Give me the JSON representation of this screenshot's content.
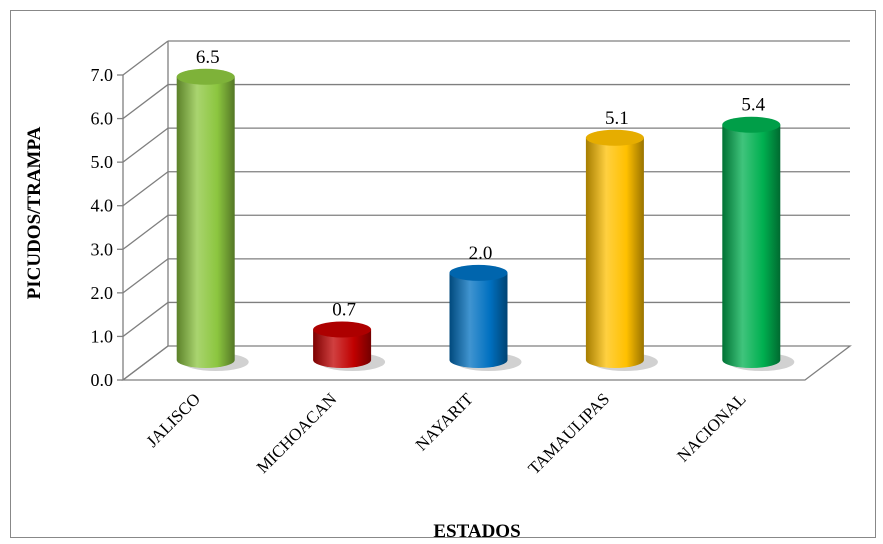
{
  "chart_data": {
    "type": "bar",
    "categories": [
      "JALISCO",
      "MICHOACAN",
      "NAYARIT",
      "TAMAULIPAS",
      "NACIONAL"
    ],
    "values": [
      6.5,
      0.7,
      2.0,
      5.1,
      5.4
    ],
    "value_labels": [
      "6.5",
      "0.7",
      "2.0",
      "5.1",
      "5.4"
    ],
    "colors": [
      "#8cc63f",
      "#c00000",
      "#0070c0",
      "#ffc000",
      "#00b050"
    ],
    "yticks": [
      "0.0",
      "1.0",
      "2.0",
      "3.0",
      "4.0",
      "5.0",
      "6.0",
      "7.0"
    ],
    "ylim": [
      0,
      7
    ],
    "xlabel": "ESTADOS",
    "ylabel": "PICUDOS/TRAMPA",
    "grid": true,
    "legend": "none",
    "style": "3d-cylinder"
  }
}
